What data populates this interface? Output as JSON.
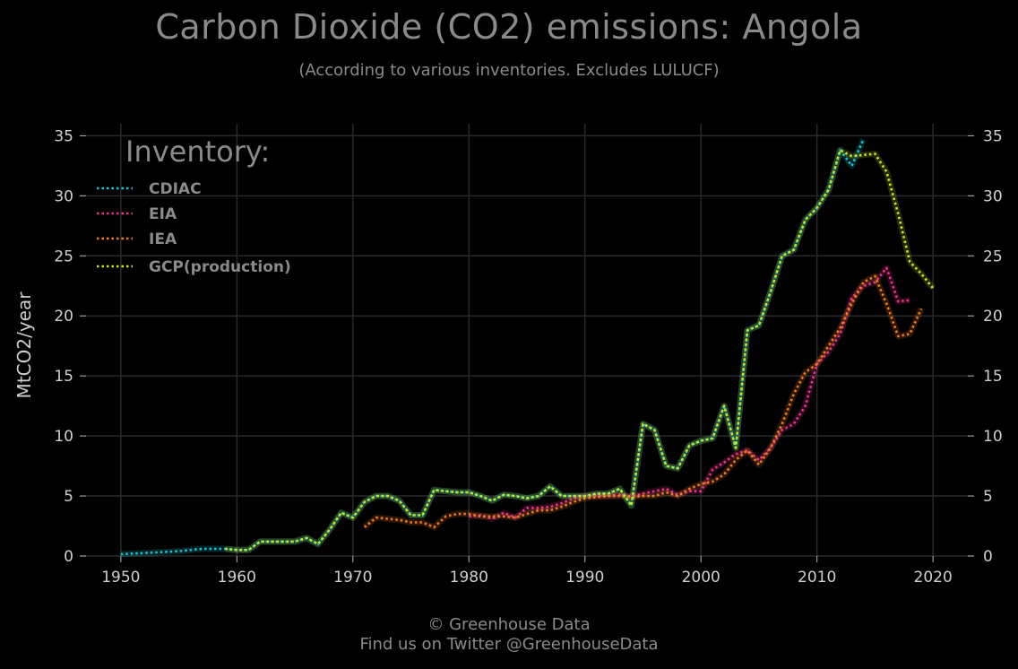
{
  "header": {
    "title": "Carbon Dioxide (CO2) emissions: Angola",
    "subtitle": "(According to various inventories. Excludes LULUCF)"
  },
  "footer": {
    "line1": "© Greenhouse Data",
    "line2": "Find us on Twitter @GreenhouseData"
  },
  "legend": {
    "title": "Inventory:",
    "placement": "top-left"
  },
  "colors": {
    "background": "#000000",
    "grid": "#2a2a2a",
    "text": "#8a8a8a",
    "tick_text": "#cfcfcf",
    "CDIAC": "#19c6d6",
    "EIA": "#e8358a",
    "IEA": "#f07c22",
    "GCP(production)": "#c9e62a"
  },
  "chart_data": {
    "type": "line",
    "title": "Carbon Dioxide (CO2) emissions: Angola",
    "subtitle": "(According to various inventories. Excludes LULUCF)",
    "xlabel": "",
    "ylabel": "MtCO2/year",
    "xlim": [
      1947,
      2023
    ],
    "ylim": [
      0,
      36
    ],
    "xticks": [
      1950,
      1960,
      1970,
      1980,
      1990,
      2000,
      2010,
      2020
    ],
    "yticks": [
      0,
      5,
      10,
      15,
      20,
      25,
      30,
      35
    ],
    "grid": true,
    "secondary_y_axis": true,
    "legend_position": "top-left",
    "series": [
      {
        "name": "CDIAC",
        "x": [
          1950,
          1951,
          1952,
          1953,
          1954,
          1955,
          1956,
          1957,
          1958,
          1959,
          1960,
          1961,
          1962,
          1963,
          1964,
          1965,
          1966,
          1967,
          1968,
          1969,
          1970,
          1971,
          1972,
          1973,
          1974,
          1975,
          1976,
          1977,
          1978,
          1979,
          1980,
          1981,
          1982,
          1983,
          1984,
          1985,
          1986,
          1987,
          1988,
          1989,
          1990,
          1991,
          1992,
          1993,
          1994,
          1995,
          1996,
          1997,
          1998,
          1999,
          2000,
          2001,
          2002,
          2003,
          2004,
          2005,
          2006,
          2007,
          2008,
          2009,
          2010,
          2011,
          2012,
          2013,
          2014
        ],
        "values": [
          0.15,
          0.2,
          0.25,
          0.3,
          0.35,
          0.4,
          0.5,
          0.6,
          0.6,
          0.6,
          0.5,
          0.5,
          1.2,
          1.2,
          1.2,
          1.2,
          1.5,
          1.0,
          2.2,
          3.6,
          3.2,
          4.5,
          5.0,
          5.0,
          4.6,
          3.4,
          3.4,
          5.5,
          5.4,
          5.3,
          5.3,
          5.0,
          4.6,
          5.1,
          5.0,
          4.8,
          5.0,
          5.8,
          5.0,
          5.0,
          5.0,
          5.2,
          5.2,
          5.6,
          4.2,
          11.0,
          10.5,
          7.5,
          7.3,
          9.2,
          9.6,
          9.8,
          12.5,
          9.0,
          18.8,
          19.2,
          22.0,
          25.0,
          25.5,
          28.0,
          29.0,
          30.5,
          33.8,
          32.5,
          34.7
        ]
      },
      {
        "name": "EIA",
        "x": [
          1980,
          1981,
          1982,
          1983,
          1984,
          1985,
          1986,
          1987,
          1988,
          1989,
          1990,
          1991,
          1992,
          1993,
          1994,
          1995,
          1996,
          1997,
          1998,
          1999,
          2000,
          2001,
          2002,
          2003,
          2004,
          2005,
          2006,
          2007,
          2008,
          2009,
          2010,
          2011,
          2012,
          2013,
          2014,
          2015,
          2016,
          2017,
          2018
        ],
        "values": [
          3.3,
          3.4,
          3.1,
          3.6,
          3.2,
          4.0,
          4.0,
          4.1,
          4.4,
          4.8,
          5.0,
          5.0,
          5.0,
          5.1,
          5.0,
          5.2,
          5.4,
          5.6,
          5.1,
          5.4,
          5.4,
          7.2,
          7.8,
          8.5,
          8.8,
          8.0,
          9.0,
          10.5,
          11.0,
          12.5,
          16.0,
          17.0,
          18.5,
          21.5,
          22.5,
          22.8,
          24.0,
          21.2,
          21.3
        ]
      },
      {
        "name": "IEA",
        "x": [
          1971,
          1972,
          1973,
          1974,
          1975,
          1976,
          1977,
          1978,
          1979,
          1980,
          1981,
          1982,
          1983,
          1984,
          1985,
          1986,
          1987,
          1988,
          1989,
          1990,
          1991,
          1992,
          1993,
          1994,
          1995,
          1996,
          1997,
          1998,
          1999,
          2000,
          2001,
          2002,
          2003,
          2004,
          2005,
          2006,
          2007,
          2008,
          2009,
          2010,
          2011,
          2012,
          2013,
          2014,
          2015,
          2016,
          2017,
          2018,
          2019
        ],
        "values": [
          2.4,
          3.2,
          3.1,
          3.0,
          2.8,
          2.8,
          2.4,
          3.3,
          3.5,
          3.5,
          3.3,
          3.3,
          3.3,
          3.2,
          3.5,
          3.8,
          3.8,
          4.1,
          4.5,
          4.8,
          4.9,
          5.0,
          5.0,
          4.9,
          5.0,
          5.0,
          5.3,
          5.0,
          5.6,
          6.0,
          6.2,
          6.8,
          8.0,
          8.8,
          7.6,
          9.0,
          11.0,
          13.5,
          15.3,
          16.0,
          17.5,
          19.0,
          21.0,
          22.8,
          23.3,
          21.0,
          18.3,
          18.5,
          20.6
        ]
      },
      {
        "name": "GCP(production)",
        "x": [
          1959,
          1960,
          1961,
          1962,
          1963,
          1964,
          1965,
          1966,
          1967,
          1968,
          1969,
          1970,
          1971,
          1972,
          1973,
          1974,
          1975,
          1976,
          1977,
          1978,
          1979,
          1980,
          1981,
          1982,
          1983,
          1984,
          1985,
          1986,
          1987,
          1988,
          1989,
          1990,
          1991,
          1992,
          1993,
          1994,
          1995,
          1996,
          1997,
          1998,
          1999,
          2000,
          2001,
          2002,
          2003,
          2004,
          2005,
          2006,
          2007,
          2008,
          2009,
          2010,
          2011,
          2012,
          2013,
          2014,
          2015,
          2016,
          2017,
          2018,
          2019,
          2020
        ],
        "values": [
          0.6,
          0.5,
          0.5,
          1.2,
          1.2,
          1.2,
          1.2,
          1.5,
          1.0,
          2.2,
          3.6,
          3.2,
          4.5,
          5.0,
          5.0,
          4.6,
          3.4,
          3.4,
          5.5,
          5.4,
          5.3,
          5.3,
          5.0,
          4.6,
          5.1,
          5.0,
          4.8,
          5.0,
          5.8,
          5.0,
          5.0,
          5.0,
          5.2,
          5.2,
          5.6,
          4.2,
          11.0,
          10.5,
          7.5,
          7.3,
          9.2,
          9.6,
          9.8,
          12.5,
          9.0,
          18.8,
          19.2,
          22.0,
          25.0,
          25.5,
          28.0,
          29.0,
          30.5,
          33.8,
          33.3,
          33.4,
          33.5,
          32.0,
          28.5,
          24.5,
          23.5,
          22.3
        ]
      }
    ]
  }
}
